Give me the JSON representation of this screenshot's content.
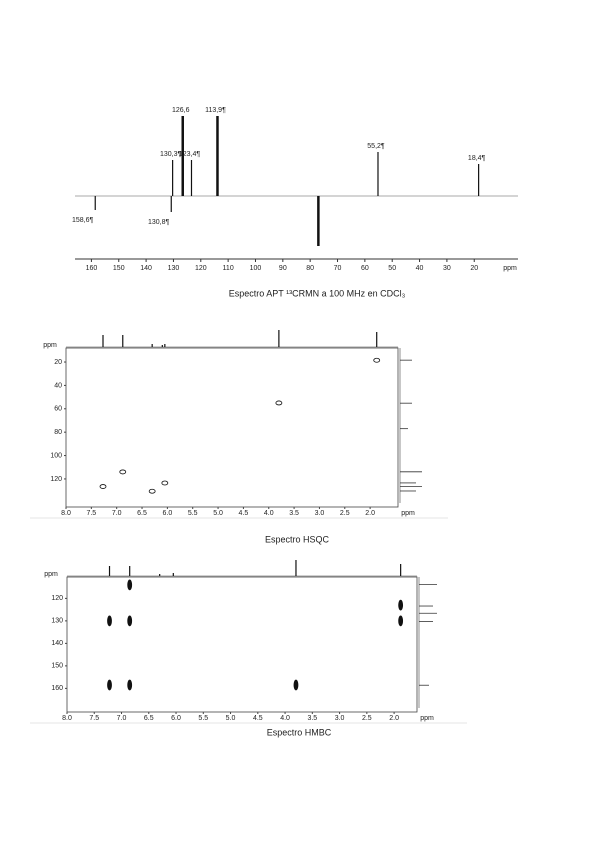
{
  "apt": {
    "caption": "Espectro APT ¹³CRMN a 100 MHz en CDCl₃",
    "xlim": [
      166,
      4
    ],
    "xticks": [
      160,
      150,
      140,
      130,
      120,
      110,
      100,
      90,
      80,
      70,
      60,
      50,
      40,
      30,
      20
    ],
    "x_unit": "ppm",
    "peaks": {
      "shifts": [
        158.6,
        130.8,
        130.3,
        126.6,
        123.4,
        113.9,
        77.0,
        55.2,
        18.4
      ],
      "intensities": [
        -14,
        -16,
        36,
        80,
        36,
        80,
        -50,
        44,
        32
      ],
      "labels": [
        "158,6¶",
        "130,8¶",
        "130,3¶",
        "126,6",
        "123,4¶",
        "113,9¶",
        null,
        "55,2¶",
        "18,4¶"
      ]
    }
  },
  "hsqc": {
    "caption": "Espectro HSQC",
    "xlim": [
      8.0,
      1.45
    ],
    "xticks": [
      {
        "value": 8,
        "label": "8.0"
      },
      7.5,
      {
        "value": 7,
        "label": "7.0"
      },
      6.5,
      {
        "value": 6,
        "label": "6.0"
      },
      5.5,
      {
        "value": 5,
        "label": "5.0"
      },
      4.5,
      {
        "value": 4,
        "label": "4.0"
      },
      3.5,
      {
        "value": 3,
        "label": "3.0"
      },
      2.5,
      {
        "value": 2,
        "label": "2.0"
      }
    ],
    "ylim": [
      8,
      144
    ],
    "yticks": [
      20,
      40,
      60,
      80,
      100,
      120
    ],
    "x_unit": "ppm",
    "y_unit": "ppm",
    "cross_peaks": {
      "h": [
        7.27,
        6.88,
        6.3,
        6.05,
        3.8,
        1.87
      ],
      "c": [
        126.5,
        114,
        130.5,
        123.5,
        55,
        18.5
      ]
    },
    "top_projection": {
      "shifts": [
        7.27,
        6.88,
        6.3,
        6.1,
        6.05,
        3.8,
        1.87
      ],
      "intensities": [
        12,
        12,
        3,
        2,
        3,
        17,
        15
      ]
    },
    "side_projection": {
      "shifts": [
        18.4,
        55.2,
        77.0,
        113.9,
        123.4,
        126.6,
        130.3
      ],
      "intensities": [
        12,
        12,
        8,
        22,
        16,
        22,
        16
      ]
    }
  },
  "hmbc": {
    "caption": "Espectro HMBC",
    "xlim": [
      8.0,
      1.58
    ],
    "xticks": [
      {
        "value": 8,
        "label": "8.0"
      },
      7.5,
      {
        "value": 7,
        "label": "7.0"
      },
      6.5,
      {
        "value": 6,
        "label": "6.0"
      },
      5.5,
      {
        "value": 5,
        "label": "5.0"
      },
      4.5,
      {
        "value": 4,
        "label": "4.0"
      },
      3.5,
      {
        "value": 3,
        "label": "3.0"
      },
      2.5,
      {
        "value": 2,
        "label": "2.0"
      }
    ],
    "ylim": [
      110.5,
      170.5
    ],
    "yticks": [
      120,
      130,
      140,
      150,
      160
    ],
    "x_unit": "ppm",
    "y_unit": "ppm",
    "cross_peaks": {
      "h": [
        7.22,
        7.22,
        6.85,
        6.85,
        6.85,
        1.88,
        1.88,
        3.8
      ],
      "c": [
        130,
        158.5,
        114,
        130,
        158.5,
        123,
        130,
        158.5
      ]
    },
    "top_projection": {
      "shifts": [
        7.22,
        6.85,
        6.3,
        6.05,
        3.8,
        1.88
      ],
      "intensities": [
        10,
        10,
        2,
        3,
        16,
        12
      ]
    },
    "side_projection": {
      "shifts": [
        113.9,
        123.4,
        126.6,
        130.3,
        158.6
      ],
      "intensities": [
        18,
        14,
        18,
        14,
        10
      ]
    }
  }
}
